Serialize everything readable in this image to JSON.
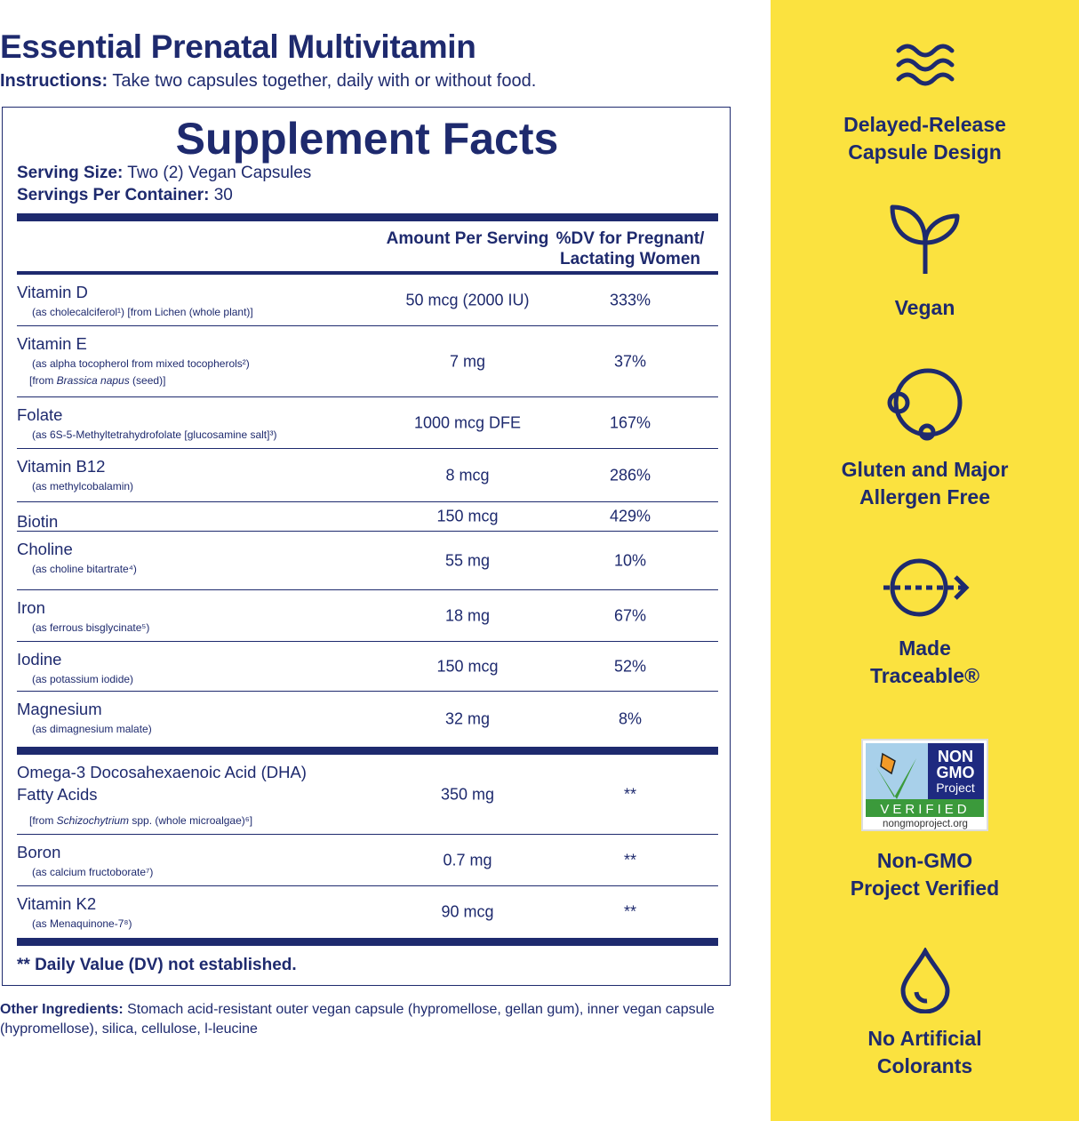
{
  "header": {
    "title": "Essential Prenatal Multivitamin",
    "instructions_label": "Instructions:",
    "instructions": " Take two capsules together, daily with or without food."
  },
  "facts": {
    "title": "Supplement Facts",
    "serving_size_label": "Serving Size:",
    "serving_size": " Two (2) Vegan Capsules",
    "servings_label": "Servings Per Container:",
    "servings": " 30",
    "col_amount": "Amount Per Serving",
    "col_dv": "%DV for Pregnant/ Lactating Women",
    "group1": [
      {
        "name": "Vitamin D",
        "sub": [
          [
            {
              "text": "(as cholecalciferol¹) [from Lichen (whole plant)]"
            }
          ]
        ],
        "amount": "50 mcg (2000 IU)",
        "dv": "333%"
      },
      {
        "name": "Vitamin E",
        "sub": [
          [
            {
              "text": "(as alpha tocopherol from mixed tocopherols²)"
            }
          ],
          [
            {
              "text": "[from "
            },
            {
              "text": "Brassica napus",
              "italic": true
            },
            {
              "text": " (seed)]"
            }
          ]
        ],
        "amount": "7 mg",
        "dv": "37%"
      },
      {
        "name": "Folate",
        "sub": [
          [
            {
              "text": "(as 6S-5-Methyltetrahydrofolate [glucosamine salt]³)"
            }
          ]
        ],
        "amount": "1000 mcg DFE",
        "dv": "167%"
      },
      {
        "name": "Vitamin B12",
        "sub": [
          [
            {
              "text": "(as methylcobalamin)"
            }
          ]
        ],
        "amount": "8 mcg",
        "dv": "286%"
      },
      {
        "name": "Biotin",
        "sub": [],
        "amount": "150 mcg",
        "dv": "429%"
      },
      {
        "name": "Choline",
        "sub": [
          [
            {
              "text": "(as choline bitartrate⁴)"
            }
          ]
        ],
        "amount": "55 mg",
        "dv": "10%"
      },
      {
        "name": "Iron",
        "sub": [
          [
            {
              "text": "(as ferrous bisglycinate⁵)"
            }
          ]
        ],
        "amount": "18 mg",
        "dv": "67%"
      },
      {
        "name": "Iodine",
        "sub": [
          [
            {
              "text": "(as potassium iodide)"
            }
          ]
        ],
        "amount": "150 mcg",
        "dv": "52%"
      },
      {
        "name": "Magnesium",
        "sub": [
          [
            {
              "text": "(as dimagnesium malate)"
            }
          ]
        ],
        "amount": "32 mg",
        "dv": "8%"
      }
    ],
    "group2": [
      {
        "name": "Omega-3 Docosahexaenoic Acid (DHA)",
        "name2": "Fatty Acids",
        "sub": [
          [
            {
              "text": "[from "
            },
            {
              "text": "Schizochytrium",
              "italic": true
            },
            {
              "text": " spp. (whole microalgae)⁶]"
            }
          ]
        ],
        "amount": "350 mg",
        "dv": "**"
      },
      {
        "name": "Boron",
        "sub": [
          [
            {
              "text": "(as calcium fructoborate⁷)"
            }
          ]
        ],
        "amount": "0.7 mg",
        "dv": "**"
      },
      {
        "name": "Vitamin K2",
        "sub": [
          [
            {
              "text": "(as Menaquinone-7⁸)"
            }
          ]
        ],
        "amount": "90 mcg",
        "dv": "**"
      }
    ],
    "footnote": "** Daily Value (DV) not established."
  },
  "other": {
    "label": "Other Ingredients:",
    "text": " Stomach acid-resistant outer vegan capsule (hypromellose, gellan gum), inner vegan capsule (hypromellose),  silica, cellulose, l-leucine"
  },
  "features": [
    {
      "icon": "waves-icon",
      "line1": "Delayed-Release",
      "line2": "Capsule Design"
    },
    {
      "icon": "sprout-icon",
      "line1": "Vegan",
      "line2": ""
    },
    {
      "icon": "circle-allergen-icon",
      "line1": "Gluten and Major",
      "line2": "Allergen Free"
    },
    {
      "icon": "trace-arrow-icon",
      "line1": "Made",
      "line2": "Traceable®"
    },
    {
      "icon": "non-gmo-badge",
      "line1": "Non-GMO",
      "line2": "Project Verified"
    },
    {
      "icon": "droplet-icon",
      "line1": "No Artificial",
      "line2": "Colorants"
    }
  ],
  "badge": {
    "non": "NON",
    "gmo": "GMO",
    "project": "Project",
    "verified": "VERIFIED",
    "url": "nongmoproject.org"
  },
  "colors": {
    "navy": "#1e2a6e",
    "yellow": "#fbe23f"
  }
}
